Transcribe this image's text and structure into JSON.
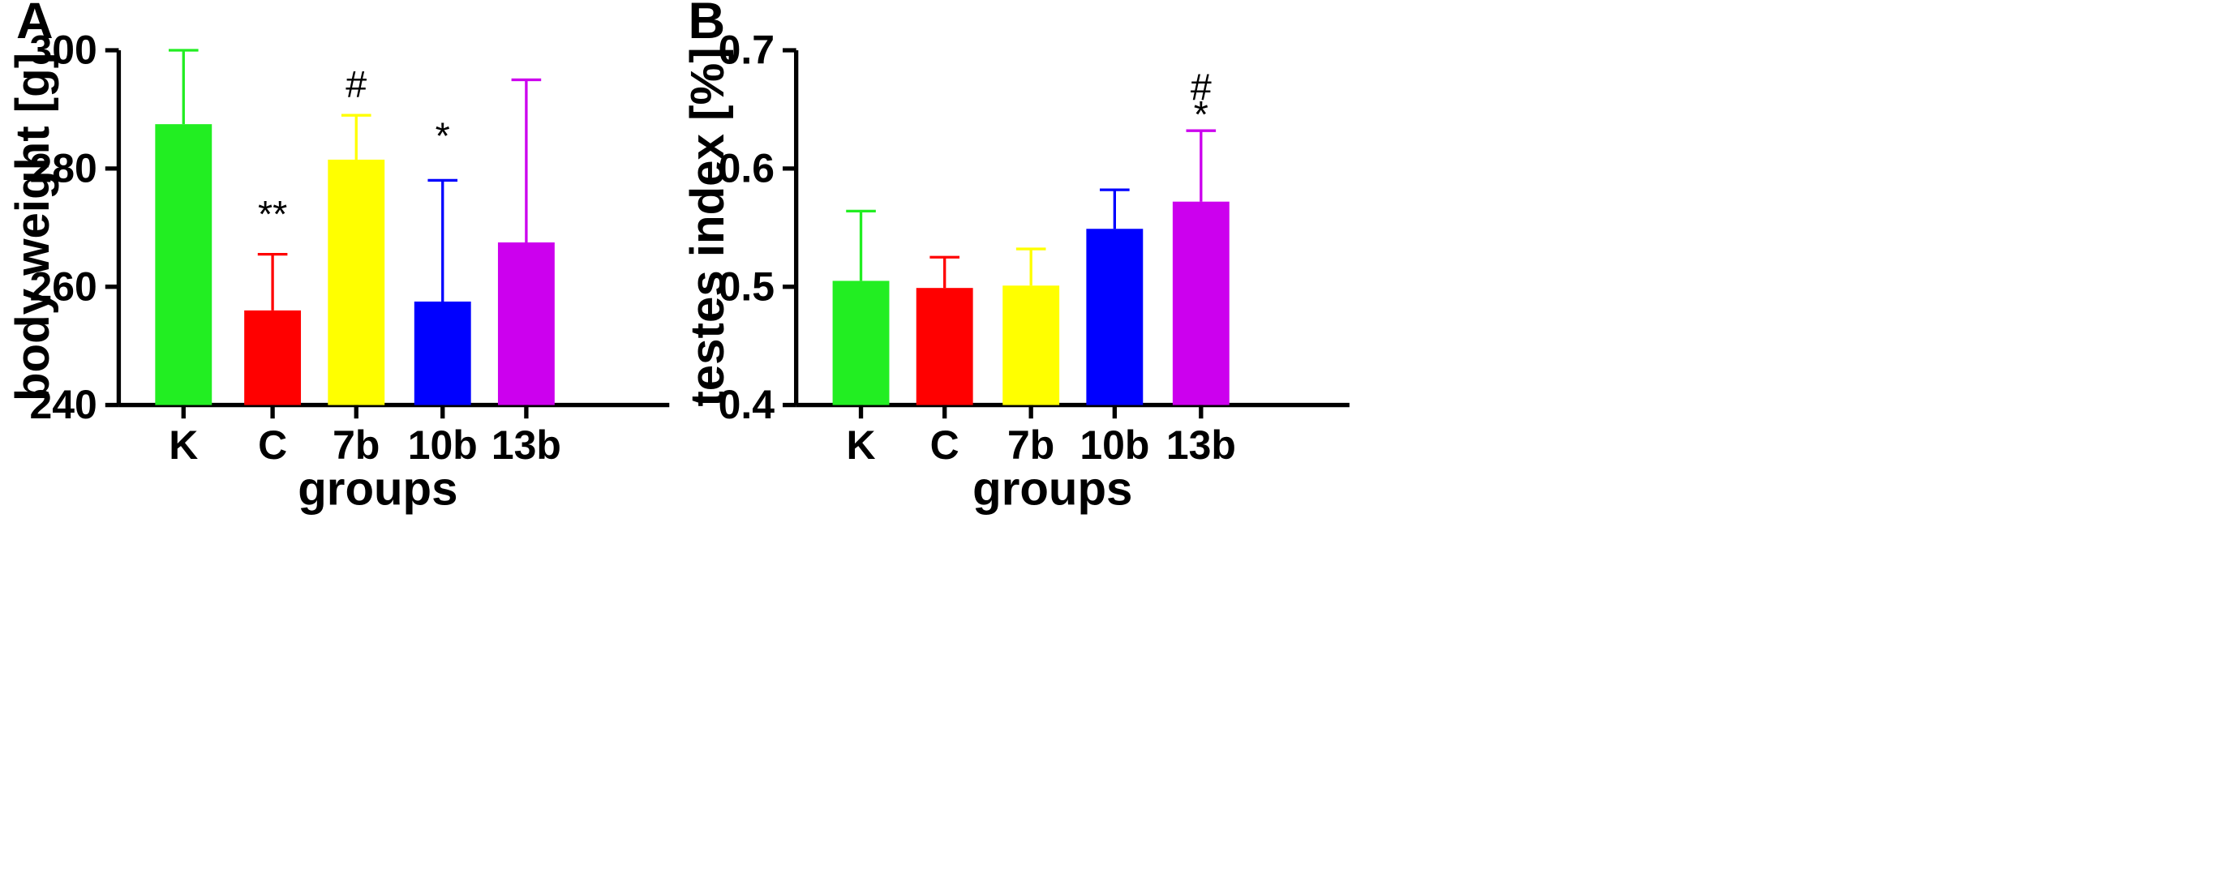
{
  "chart_data": [
    {
      "panel": "A",
      "type": "bar",
      "categories": [
        "K",
        "C",
        "7b",
        "10b",
        "13b"
      ],
      "values": [
        287.5,
        256,
        281.5,
        257.5,
        267.5
      ],
      "errors": [
        12.5,
        9.5,
        7.5,
        20.5,
        27.5
      ],
      "colors": [
        "#22ee22",
        "#ff0000",
        "#ffff00",
        "#0000ff",
        "#cc00ee"
      ],
      "annotations": [
        "",
        "**",
        "#",
        "*",
        ""
      ],
      "xlabel": "groups",
      "ylabel": "body weight [g]",
      "ylim": [
        240,
        300
      ],
      "yticks": [
        "240",
        "260",
        "280",
        "300"
      ],
      "grid": false
    },
    {
      "panel": "B",
      "type": "bar",
      "categories": [
        "K",
        "C",
        "7b",
        "10b",
        "13b"
      ],
      "values": [
        0.505,
        0.499,
        0.501,
        0.549,
        0.572
      ],
      "errors": [
        0.059,
        0.026,
        0.031,
        0.033,
        0.06
      ],
      "colors": [
        "#22ee22",
        "#ff0000",
        "#ffff00",
        "#0000ff",
        "#cc00ee"
      ],
      "annotations": [
        "",
        "",
        "",
        "",
        "#\n*"
      ],
      "xlabel": "groups",
      "ylabel": "testes index [%]",
      "ylim": [
        0.4,
        0.7
      ],
      "yticks": [
        "0.4",
        "0.5",
        "0.6",
        "0.7"
      ],
      "grid": false
    }
  ]
}
